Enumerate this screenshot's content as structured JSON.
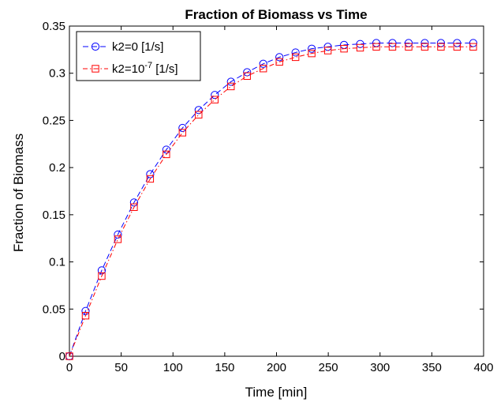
{
  "chart_data": {
    "type": "line",
    "title": "Fraction of Biomass vs Time",
    "xlabel": "Time [min]",
    "ylabel": "Fraction of Biomass",
    "xlim": [
      0,
      400
    ],
    "ylim": [
      0,
      0.35
    ],
    "xticks": [
      "0",
      "50",
      "100",
      "150",
      "200",
      "250",
      "300",
      "350",
      "400"
    ],
    "yticks": [
      "0",
      "0.05",
      "0.1",
      "0.15",
      "0.2",
      "0.25",
      "0.3",
      "0.35"
    ],
    "grid": false,
    "legend_position": "top-left",
    "x": [
      0,
      15.6,
      31.2,
      46.8,
      62.4,
      78,
      93.6,
      109.2,
      124.8,
      140.4,
      156,
      171.6,
      187.2,
      202.8,
      218.4,
      234,
      249.6,
      265.2,
      280.8,
      296.4,
      312,
      327.6,
      343.2,
      358.8,
      374.4,
      390
    ],
    "series": [
      {
        "name": "k2=0 [1/s]",
        "legend_main": "k2=0 [1/s]",
        "color": "#0000ff",
        "marker": "circle",
        "linestyle": "dashed",
        "values": [
          0,
          0.048,
          0.091,
          0.129,
          0.163,
          0.193,
          0.219,
          0.242,
          0.261,
          0.277,
          0.291,
          0.301,
          0.31,
          0.317,
          0.322,
          0.326,
          0.328,
          0.33,
          0.331,
          0.332,
          0.332,
          0.332,
          0.332,
          0.332,
          0.332,
          0.332
        ]
      },
      {
        "name": "k2=10^-7 [1/s]",
        "legend_main": "k2=10",
        "legend_sup": "-7",
        "legend_tail": " [1/s]",
        "color": "#ff0000",
        "marker": "square",
        "linestyle": "dashdot",
        "values": [
          0,
          0.043,
          0.085,
          0.124,
          0.158,
          0.188,
          0.214,
          0.237,
          0.256,
          0.272,
          0.286,
          0.297,
          0.305,
          0.312,
          0.317,
          0.321,
          0.324,
          0.326,
          0.327,
          0.328,
          0.328,
          0.328,
          0.328,
          0.328,
          0.328,
          0.328
        ]
      }
    ]
  }
}
